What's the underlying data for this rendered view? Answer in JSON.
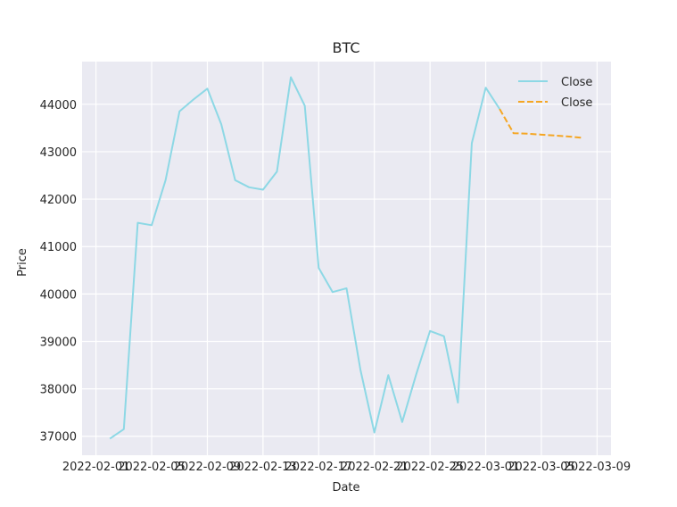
{
  "chart_data": {
    "type": "line",
    "title": "BTC",
    "xlabel": "Date",
    "ylabel": "Price",
    "ylim": [
      36600,
      44900
    ],
    "xlim": [
      "2022-01-31",
      "2022-03-10"
    ],
    "grid": true,
    "legend_position": "top-right",
    "yticks": [
      37000,
      38000,
      39000,
      40000,
      41000,
      42000,
      43000,
      44000
    ],
    "xticks": [
      "2022-02-01",
      "2022-02-05",
      "2022-02-09",
      "2022-02-13",
      "2022-02-17",
      "2022-02-21",
      "2022-02-25",
      "2022-03-01",
      "2022-03-05",
      "2022-03-09"
    ],
    "series": [
      {
        "name": "Close",
        "color": "#8dd8e5",
        "style": "solid",
        "x": [
          "2022-02-02",
          "2022-02-03",
          "2022-02-04",
          "2022-02-05",
          "2022-02-06",
          "2022-02-07",
          "2022-02-08",
          "2022-02-09",
          "2022-02-10",
          "2022-02-11",
          "2022-02-12",
          "2022-02-13",
          "2022-02-14",
          "2022-02-15",
          "2022-02-16",
          "2022-02-17",
          "2022-02-18",
          "2022-02-19",
          "2022-02-20",
          "2022-02-21",
          "2022-02-22",
          "2022-02-23",
          "2022-02-24",
          "2022-02-25",
          "2022-02-26",
          "2022-02-27",
          "2022-02-28",
          "2022-03-01",
          "2022-03-02"
        ],
        "y": [
          36950,
          37150,
          41500,
          41450,
          42400,
          43850,
          44100,
          44330,
          43580,
          42400,
          42250,
          42200,
          42580,
          44570,
          43970,
          40550,
          40040,
          40120,
          38400,
          37080,
          38290,
          37300,
          38300,
          39220,
          39110,
          37710,
          43180,
          44350,
          43900
        ]
      },
      {
        "name": "Close",
        "color": "#f5a623",
        "style": "dashed",
        "x": [
          "2022-03-02",
          "2022-03-03",
          "2022-03-04",
          "2022-03-05",
          "2022-03-06",
          "2022-03-07",
          "2022-03-08"
        ],
        "y": [
          43900,
          43390,
          43380,
          43360,
          43340,
          43320,
          43290
        ]
      }
    ]
  }
}
